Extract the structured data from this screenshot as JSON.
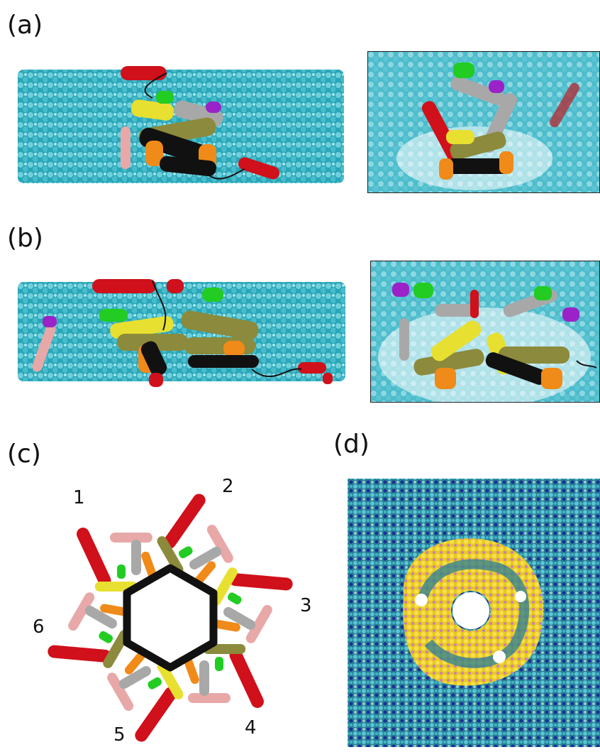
{
  "panels": {
    "a": {
      "label": "(a)"
    },
    "b": {
      "label": "(b)"
    },
    "c": {
      "label": "(c)",
      "subunit_numbers": [
        "1",
        "2",
        "3",
        "4",
        "5",
        "6"
      ]
    },
    "d": {
      "label": "(d)"
    }
  },
  "colors": {
    "membrane": "#3fb6c8",
    "membrane_light": "#9ee0ea",
    "red_helix": "#d0101a",
    "yellow_helix": "#e8e030",
    "olive_helix": "#8c8a3c",
    "black_helix": "#111111",
    "orange_helix": "#f08a18",
    "gray_helix": "#a8a8a8",
    "green_helix": "#22cc22",
    "purple_helix": "#9a22c8",
    "pink_helix": "#e8a8a8",
    "dark_blue_bead": "#1a2f9a",
    "yellow_bead": "#f0d020"
  }
}
